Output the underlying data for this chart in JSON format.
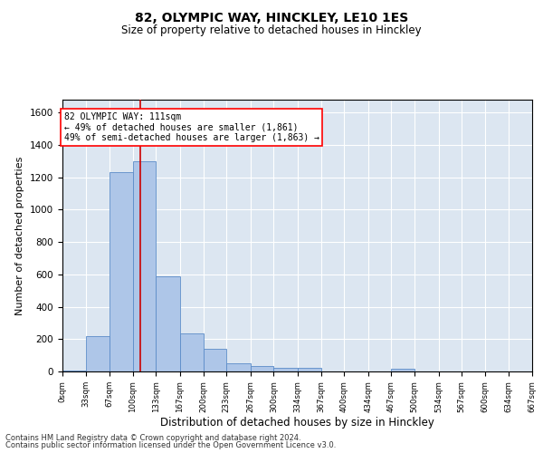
{
  "title1": "82, OLYMPIC WAY, HINCKLEY, LE10 1ES",
  "title2": "Size of property relative to detached houses in Hinckley",
  "xlabel": "Distribution of detached houses by size in Hinckley",
  "ylabel": "Number of detached properties",
  "footnote1": "Contains HM Land Registry data © Crown copyright and database right 2024.",
  "footnote2": "Contains public sector information licensed under the Open Government Licence v3.0.",
  "annotation_line1": "82 OLYMPIC WAY: 111sqm",
  "annotation_line2": "← 49% of detached houses are smaller (1,861)",
  "annotation_line3": "49% of semi-detached houses are larger (1,863) →",
  "bar_color": "#aec6e8",
  "bar_edge_color": "#5b8cc8",
  "bg_color": "#dce6f1",
  "grid_color": "#ffffff",
  "vline_color": "#cc0000",
  "vline_x": 111,
  "bins": [
    0,
    33,
    67,
    100,
    133,
    167,
    200,
    233,
    267,
    300,
    334,
    367,
    400,
    434,
    467,
    500,
    534,
    567,
    600,
    634,
    667
  ],
  "bin_labels": [
    "0sqm",
    "33sqm",
    "67sqm",
    "100sqm",
    "133sqm",
    "167sqm",
    "200sqm",
    "233sqm",
    "267sqm",
    "300sqm",
    "334sqm",
    "367sqm",
    "400sqm",
    "434sqm",
    "467sqm",
    "500sqm",
    "534sqm",
    "567sqm",
    "600sqm",
    "634sqm",
    "667sqm"
  ],
  "bar_heights": [
    5,
    220,
    1230,
    1300,
    590,
    235,
    140,
    50,
    35,
    25,
    25,
    0,
    0,
    0,
    15,
    0,
    0,
    0,
    0,
    0
  ],
  "ylim": [
    0,
    1680
  ],
  "yticks": [
    0,
    200,
    400,
    600,
    800,
    1000,
    1200,
    1400,
    1600
  ]
}
